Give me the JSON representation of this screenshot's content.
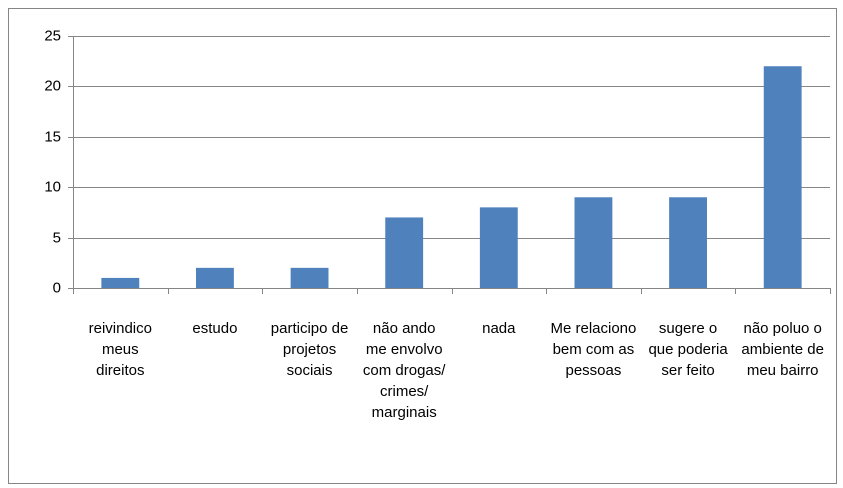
{
  "chart_data": {
    "type": "bar",
    "categories": [
      "reivindico meus direitos",
      "estudo",
      "participo de projetos sociais",
      "não ando me envolvo com drogas/ crimes/ marginais",
      "nada",
      "Me relaciono bem com as pessoas",
      "sugere o que poderia ser feito",
      "não poluo o ambiente de meu bairro"
    ],
    "values": [
      1,
      2,
      2,
      7,
      8,
      9,
      9,
      22
    ],
    "color": "#4f81bd",
    "ylim": [
      0,
      25
    ],
    "yticks": [
      0,
      5,
      10,
      15,
      20,
      25
    ],
    "grid": true
  }
}
